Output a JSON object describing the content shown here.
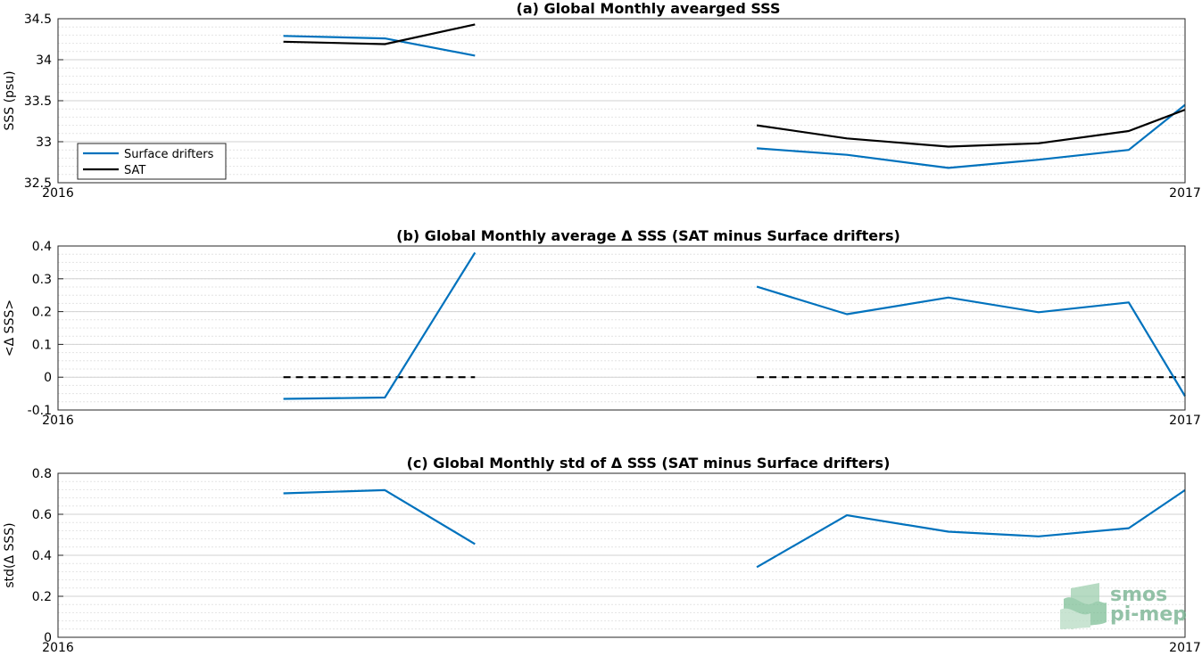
{
  "chart_data": [
    {
      "type": "line",
      "title": "(a) Global Monthly avearged SSS",
      "xlabel": "",
      "ylabel": "SSS (psu)",
      "xlim": [
        2016.0,
        2017.0
      ],
      "xticks": [
        "2016",
        "2017"
      ],
      "ylim": [
        32.5,
        34.5
      ],
      "yticks": [
        "32.5",
        "33",
        "33.5",
        "34",
        "34.5"
      ],
      "grid": true,
      "legend": {
        "placement": "bottom-left",
        "entries": [
          "Surface drifters",
          "SAT"
        ]
      },
      "series": [
        {
          "name": "Surface drifters",
          "color": "#0072bd",
          "segments": [
            {
              "x": [
                2016.2,
                2016.29,
                2016.37
              ],
              "y": [
                34.29,
                34.26,
                34.05
              ]
            },
            {
              "x": [
                2016.62,
                2016.7,
                2016.79,
                2016.87,
                2016.95,
                2017.0
              ],
              "y": [
                32.92,
                32.84,
                32.68,
                32.78,
                32.9,
                33.45
              ]
            }
          ]
        },
        {
          "name": "SAT",
          "color": "#000000",
          "segments": [
            {
              "x": [
                2016.2,
                2016.29,
                2016.37
              ],
              "y": [
                34.22,
                34.19,
                34.43
              ]
            },
            {
              "x": [
                2016.62,
                2016.7,
                2016.79,
                2016.87,
                2016.95,
                2017.0
              ],
              "y": [
                33.2,
                33.04,
                32.94,
                32.98,
                33.13,
                33.39
              ]
            }
          ]
        }
      ]
    },
    {
      "type": "line",
      "title": "(b) Global Monthly average Δ SSS (SAT minus Surface drifters)",
      "xlabel": "",
      "ylabel": "<Δ SSS>",
      "xlim": [
        2016.0,
        2017.0
      ],
      "xticks": [
        "2016",
        "2017"
      ],
      "ylim": [
        -0.1,
        0.4
      ],
      "yticks": [
        "-0.1",
        "0",
        "0.1",
        "0.2",
        "0.3",
        "0.4"
      ],
      "grid": true,
      "series": [
        {
          "color": "#0072bd",
          "segments": [
            {
              "x": [
                2016.2,
                2016.29,
                2016.37
              ],
              "y": [
                -0.066,
                -0.062,
                0.38
              ]
            },
            {
              "x": [
                2016.62,
                2016.7,
                2016.79,
                2016.87,
                2016.95,
                2017.0
              ],
              "y": [
                0.276,
                0.192,
                0.243,
                0.198,
                0.228,
                -0.058
              ]
            }
          ]
        }
      ],
      "reference_lines": [
        {
          "style": "dashed",
          "color": "#000000",
          "y": 0,
          "segments": [
            [
              2016.2,
              2016.37
            ],
            [
              2016.62,
              2017.0
            ]
          ]
        }
      ]
    },
    {
      "type": "line",
      "title": "(c) Global Monthly std of Δ SSS (SAT minus Surface drifters)",
      "xlabel": "",
      "ylabel": "std(Δ SSS)",
      "xlim": [
        2016.0,
        2017.0
      ],
      "xticks": [
        "2016",
        "2017"
      ],
      "ylim": [
        0,
        0.8
      ],
      "yticks": [
        "0",
        "0.2",
        "0.4",
        "0.6",
        "0.8"
      ],
      "grid": true,
      "series": [
        {
          "color": "#0072bd",
          "segments": [
            {
              "x": [
                2016.2,
                2016.29,
                2016.37
              ],
              "y": [
                0.702,
                0.718,
                0.455
              ]
            },
            {
              "x": [
                2016.62,
                2016.7,
                2016.79,
                2016.87,
                2016.95,
                2017.0
              ],
              "y": [
                0.342,
                0.595,
                0.515,
                0.492,
                0.532,
                0.718
              ]
            }
          ]
        }
      ]
    }
  ],
  "logo": {
    "line1": "smos",
    "line2": "pi-mep",
    "color": "#6fae8a"
  }
}
